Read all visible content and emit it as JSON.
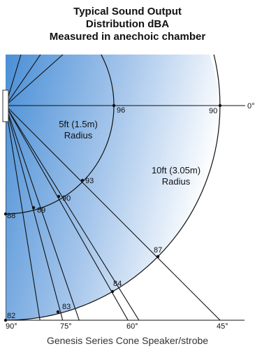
{
  "title": {
    "lines": [
      "Typical Sound Output",
      "Distribution dBA",
      "Measured in anechoic chamber"
    ]
  },
  "caption": "Genesis Series Cone Speaker/strobe",
  "colors": {
    "gradient_start": "#4a8fd6",
    "gradient_end": "#ffffff",
    "line": "#111111"
  },
  "diagram": {
    "arcs": [
      {
        "label_line1": "5ft (1.5m)",
        "label_line2": "Radius"
      },
      {
        "label_line1": "10ft (3.05m)",
        "label_line2": "Radius"
      }
    ],
    "angle_labels": [
      "0°",
      "45°",
      "60°",
      "75°",
      "90°"
    ],
    "inner_values": [
      {
        "angle": 0,
        "value": "96"
      },
      {
        "angle": 30,
        "value": "93"
      },
      {
        "angle": 45,
        "value": "90"
      },
      {
        "angle": 60,
        "value": "89"
      },
      {
        "angle": 90,
        "value": "88"
      }
    ],
    "outer_values": [
      {
        "angle": 0,
        "value": "90"
      },
      {
        "angle": 45,
        "value": "87"
      },
      {
        "angle": 60,
        "value": "84"
      },
      {
        "angle": 75,
        "value": "83"
      },
      {
        "angle": 90,
        "value": "82"
      }
    ]
  }
}
